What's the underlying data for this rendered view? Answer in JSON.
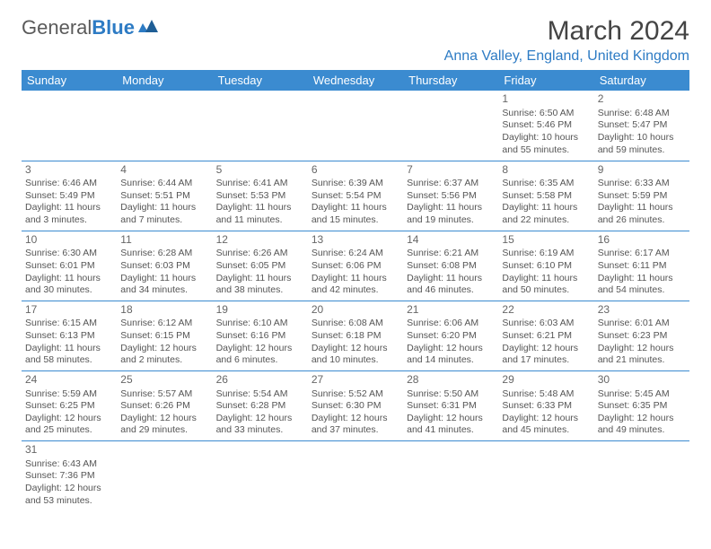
{
  "logo": {
    "text1": "General",
    "text2": "Blue"
  },
  "title": "March 2024",
  "location": "Anna Valley, England, United Kingdom",
  "colors": {
    "header_bg": "#3b8bd0",
    "header_fg": "#ffffff",
    "accent": "#2d7bc4",
    "text": "#555555",
    "border": "#3b8bd0"
  },
  "weekdays": [
    "Sunday",
    "Monday",
    "Tuesday",
    "Wednesday",
    "Thursday",
    "Friday",
    "Saturday"
  ],
  "weeks": [
    [
      null,
      null,
      null,
      null,
      null,
      {
        "n": "1",
        "sr": "Sunrise: 6:50 AM",
        "ss": "Sunset: 5:46 PM",
        "dl": "Daylight: 10 hours and 55 minutes."
      },
      {
        "n": "2",
        "sr": "Sunrise: 6:48 AM",
        "ss": "Sunset: 5:47 PM",
        "dl": "Daylight: 10 hours and 59 minutes."
      }
    ],
    [
      {
        "n": "3",
        "sr": "Sunrise: 6:46 AM",
        "ss": "Sunset: 5:49 PM",
        "dl": "Daylight: 11 hours and 3 minutes."
      },
      {
        "n": "4",
        "sr": "Sunrise: 6:44 AM",
        "ss": "Sunset: 5:51 PM",
        "dl": "Daylight: 11 hours and 7 minutes."
      },
      {
        "n": "5",
        "sr": "Sunrise: 6:41 AM",
        "ss": "Sunset: 5:53 PM",
        "dl": "Daylight: 11 hours and 11 minutes."
      },
      {
        "n": "6",
        "sr": "Sunrise: 6:39 AM",
        "ss": "Sunset: 5:54 PM",
        "dl": "Daylight: 11 hours and 15 minutes."
      },
      {
        "n": "7",
        "sr": "Sunrise: 6:37 AM",
        "ss": "Sunset: 5:56 PM",
        "dl": "Daylight: 11 hours and 19 minutes."
      },
      {
        "n": "8",
        "sr": "Sunrise: 6:35 AM",
        "ss": "Sunset: 5:58 PM",
        "dl": "Daylight: 11 hours and 22 minutes."
      },
      {
        "n": "9",
        "sr": "Sunrise: 6:33 AM",
        "ss": "Sunset: 5:59 PM",
        "dl": "Daylight: 11 hours and 26 minutes."
      }
    ],
    [
      {
        "n": "10",
        "sr": "Sunrise: 6:30 AM",
        "ss": "Sunset: 6:01 PM",
        "dl": "Daylight: 11 hours and 30 minutes."
      },
      {
        "n": "11",
        "sr": "Sunrise: 6:28 AM",
        "ss": "Sunset: 6:03 PM",
        "dl": "Daylight: 11 hours and 34 minutes."
      },
      {
        "n": "12",
        "sr": "Sunrise: 6:26 AM",
        "ss": "Sunset: 6:05 PM",
        "dl": "Daylight: 11 hours and 38 minutes."
      },
      {
        "n": "13",
        "sr": "Sunrise: 6:24 AM",
        "ss": "Sunset: 6:06 PM",
        "dl": "Daylight: 11 hours and 42 minutes."
      },
      {
        "n": "14",
        "sr": "Sunrise: 6:21 AM",
        "ss": "Sunset: 6:08 PM",
        "dl": "Daylight: 11 hours and 46 minutes."
      },
      {
        "n": "15",
        "sr": "Sunrise: 6:19 AM",
        "ss": "Sunset: 6:10 PM",
        "dl": "Daylight: 11 hours and 50 minutes."
      },
      {
        "n": "16",
        "sr": "Sunrise: 6:17 AM",
        "ss": "Sunset: 6:11 PM",
        "dl": "Daylight: 11 hours and 54 minutes."
      }
    ],
    [
      {
        "n": "17",
        "sr": "Sunrise: 6:15 AM",
        "ss": "Sunset: 6:13 PM",
        "dl": "Daylight: 11 hours and 58 minutes."
      },
      {
        "n": "18",
        "sr": "Sunrise: 6:12 AM",
        "ss": "Sunset: 6:15 PM",
        "dl": "Daylight: 12 hours and 2 minutes."
      },
      {
        "n": "19",
        "sr": "Sunrise: 6:10 AM",
        "ss": "Sunset: 6:16 PM",
        "dl": "Daylight: 12 hours and 6 minutes."
      },
      {
        "n": "20",
        "sr": "Sunrise: 6:08 AM",
        "ss": "Sunset: 6:18 PM",
        "dl": "Daylight: 12 hours and 10 minutes."
      },
      {
        "n": "21",
        "sr": "Sunrise: 6:06 AM",
        "ss": "Sunset: 6:20 PM",
        "dl": "Daylight: 12 hours and 14 minutes."
      },
      {
        "n": "22",
        "sr": "Sunrise: 6:03 AM",
        "ss": "Sunset: 6:21 PM",
        "dl": "Daylight: 12 hours and 17 minutes."
      },
      {
        "n": "23",
        "sr": "Sunrise: 6:01 AM",
        "ss": "Sunset: 6:23 PM",
        "dl": "Daylight: 12 hours and 21 minutes."
      }
    ],
    [
      {
        "n": "24",
        "sr": "Sunrise: 5:59 AM",
        "ss": "Sunset: 6:25 PM",
        "dl": "Daylight: 12 hours and 25 minutes."
      },
      {
        "n": "25",
        "sr": "Sunrise: 5:57 AM",
        "ss": "Sunset: 6:26 PM",
        "dl": "Daylight: 12 hours and 29 minutes."
      },
      {
        "n": "26",
        "sr": "Sunrise: 5:54 AM",
        "ss": "Sunset: 6:28 PM",
        "dl": "Daylight: 12 hours and 33 minutes."
      },
      {
        "n": "27",
        "sr": "Sunrise: 5:52 AM",
        "ss": "Sunset: 6:30 PM",
        "dl": "Daylight: 12 hours and 37 minutes."
      },
      {
        "n": "28",
        "sr": "Sunrise: 5:50 AM",
        "ss": "Sunset: 6:31 PM",
        "dl": "Daylight: 12 hours and 41 minutes."
      },
      {
        "n": "29",
        "sr": "Sunrise: 5:48 AM",
        "ss": "Sunset: 6:33 PM",
        "dl": "Daylight: 12 hours and 45 minutes."
      },
      {
        "n": "30",
        "sr": "Sunrise: 5:45 AM",
        "ss": "Sunset: 6:35 PM",
        "dl": "Daylight: 12 hours and 49 minutes."
      }
    ],
    [
      {
        "n": "31",
        "sr": "Sunrise: 6:43 AM",
        "ss": "Sunset: 7:36 PM",
        "dl": "Daylight: 12 hours and 53 minutes."
      },
      null,
      null,
      null,
      null,
      null,
      null
    ]
  ]
}
